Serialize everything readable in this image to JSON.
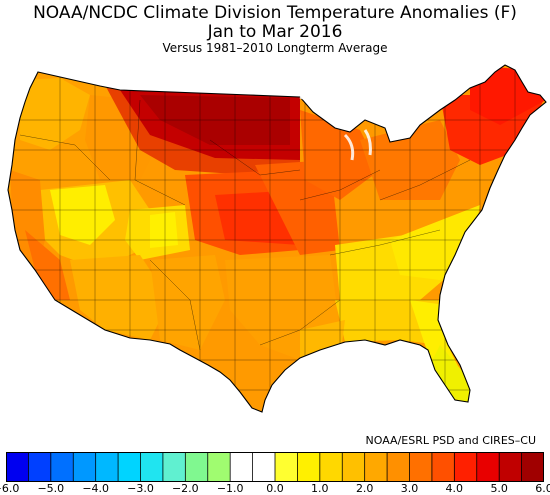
{
  "title": "NOAA/NCDC Climate Division Temperature Anomalies (F)",
  "period": "Jan to Mar 2016",
  "subtitle": "Versus 1981–2010 Longterm Average",
  "credit": "NOAA/ESRL PSD and CIRES–CU",
  "colorbar": {
    "colors": [
      "#0000f0",
      "#0040ff",
      "#0070ff",
      "#0098ff",
      "#00b8ff",
      "#00d4ff",
      "#20e4f0",
      "#60f0d0",
      "#80f890",
      "#a0fc70",
      "#ffffff",
      "#ffffff",
      "#ffff30",
      "#fff000",
      "#ffd800",
      "#ffc000",
      "#ffa800",
      "#ff9000",
      "#ff7000",
      "#ff5000",
      "#ff2000",
      "#e80000",
      "#c00000",
      "#a00000"
    ],
    "tick_values": [
      -6.0,
      -5.0,
      -4.0,
      -3.0,
      -2.0,
      -1.0,
      0.0,
      1.0,
      2.0,
      3.0,
      4.0,
      5.0,
      6.0
    ],
    "tick_labels": [
      "−6.0",
      "−5.0",
      "−4.0",
      "−3.0",
      "−2.0",
      "−1.0",
      "0.0",
      "1.0",
      "2.0",
      "3.0",
      "4.0",
      "5.0",
      "6.0"
    ],
    "range": [
      -6.0,
      6.0
    ]
  }
}
